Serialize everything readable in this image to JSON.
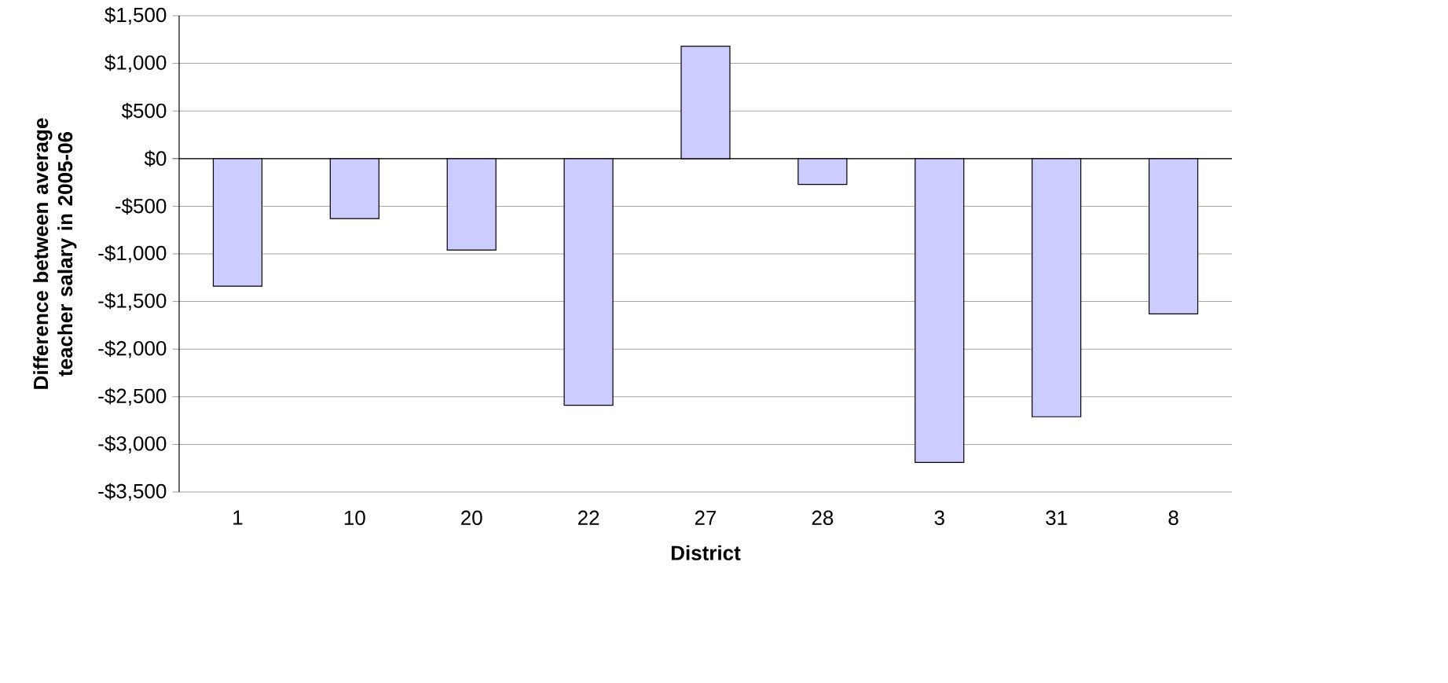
{
  "chart_data": {
    "type": "bar",
    "xlabel": "District",
    "ylabel": "Difference between average teacher salary in 2005-06",
    "categories": [
      "1",
      "10",
      "20",
      "22",
      "27",
      "28",
      "3",
      "31",
      "8"
    ],
    "values": [
      -1340,
      -630,
      -960,
      -2590,
      1180,
      -270,
      -3190,
      -2710,
      -1630
    ],
    "color": "#ccccff",
    "ylim": [
      -3500,
      1500
    ],
    "yticks": [
      {
        "value": -3500,
        "label": "-$3,500"
      },
      {
        "value": -3000,
        "label": "-$3,000"
      },
      {
        "value": -2500,
        "label": "-$2,500"
      },
      {
        "value": -2000,
        "label": "-$2,000"
      },
      {
        "value": -1500,
        "label": "-$1,500"
      },
      {
        "value": -1000,
        "label": "-$1,000"
      },
      {
        "value": -500,
        "label": "-$500"
      },
      {
        "value": 0,
        "label": "$0"
      },
      {
        "value": 500,
        "label": "$500"
      },
      {
        "value": 1000,
        "label": "$1,000"
      },
      {
        "value": 1500,
        "label": "$1,500"
      }
    ],
    "grid": "y"
  }
}
